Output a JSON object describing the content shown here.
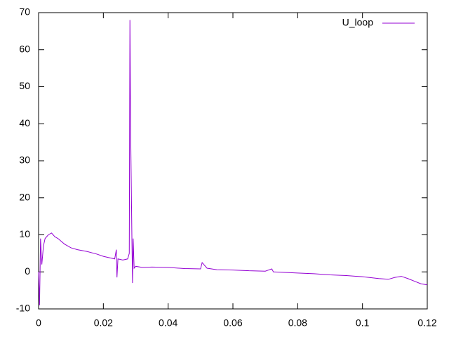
{
  "chart_data": {
    "type": "line",
    "x": [
      0,
      0.0003,
      0.0006,
      0.001,
      0.0015,
      0.002,
      0.003,
      0.004,
      0.005,
      0.006,
      0.008,
      0.01,
      0.012,
      0.015,
      0.018,
      0.02,
      0.022,
      0.0235,
      0.024,
      0.0242,
      0.0245,
      0.026,
      0.0275,
      0.028,
      0.0282,
      0.0284,
      0.0286,
      0.0288,
      0.029,
      0.0292,
      0.0295,
      0.03,
      0.032,
      0.035,
      0.04,
      0.045,
      0.05,
      0.0505,
      0.052,
      0.055,
      0.06,
      0.065,
      0.07,
      0.072,
      0.0725,
      0.08,
      0.085,
      0.09,
      0.095,
      0.1,
      0.105,
      0.108,
      0.11,
      0.112,
      0.114,
      0.116,
      0.118,
      0.12
    ],
    "series": [
      {
        "name": "U_loop",
        "color": "#9400d3",
        "values": [
          0,
          -9,
          9,
          2,
          7,
          9,
          10,
          10.5,
          9.5,
          9,
          7.5,
          6.5,
          6,
          5.5,
          4.8,
          4.2,
          3.8,
          3.5,
          6,
          -1.5,
          3.5,
          3.2,
          3.5,
          5,
          68,
          40,
          25,
          10,
          -3,
          9,
          1,
          1.5,
          1.2,
          1.3,
          1.2,
          0.9,
          0.8,
          2.5,
          1,
          0.6,
          0.5,
          0.3,
          0.2,
          0.8,
          0,
          -0.3,
          -0.5,
          -0.8,
          -1,
          -1.3,
          -1.8,
          -2,
          -1.5,
          -1.2,
          -1.8,
          -2.5,
          -3.2,
          -3.5
        ]
      }
    ],
    "xlim": [
      0,
      0.12
    ],
    "xticks": [
      0,
      0.02,
      0.04,
      0.06,
      0.08,
      0.1,
      0.12
    ],
    "ylim": [
      -10,
      70
    ],
    "yticks": [
      -10,
      0,
      10,
      20,
      30,
      40,
      50,
      60,
      70
    ],
    "legend": "top-right",
    "grid": false
  }
}
